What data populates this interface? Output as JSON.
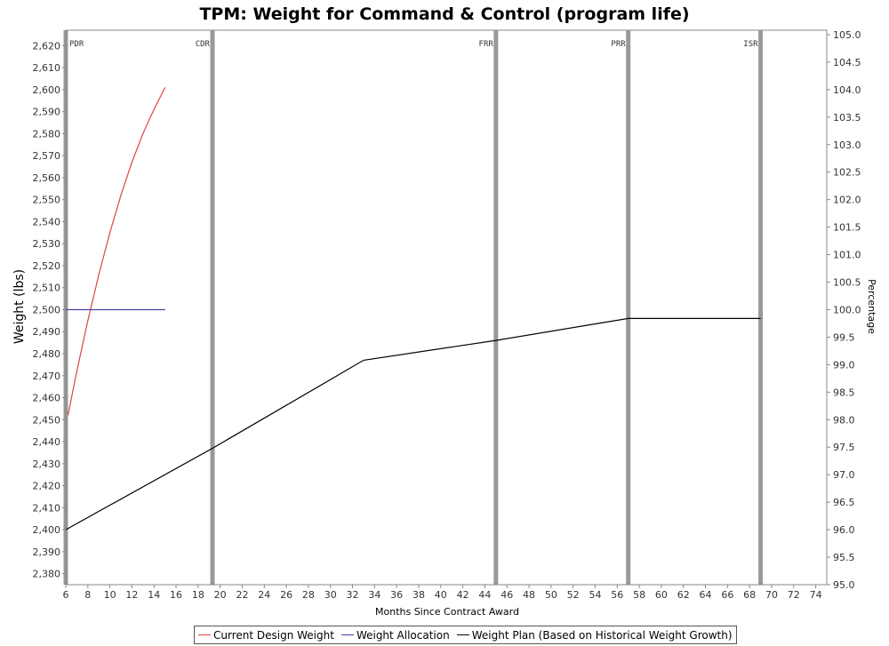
{
  "chart_data": {
    "type": "line",
    "title": "TPM: Weight for Command & Control (program life)",
    "xlabel": "Months Since Contract Award",
    "ylabel": "Weight (lbs)",
    "y2label": "Percentage",
    "xlim": [
      6,
      75
    ],
    "ylim": [
      2375,
      2627
    ],
    "y2lim": [
      95.0,
      105.08
    ],
    "xticks": [
      6,
      8,
      10,
      12,
      14,
      16,
      18,
      20,
      22,
      24,
      26,
      28,
      30,
      32,
      34,
      36,
      38,
      40,
      42,
      44,
      46,
      48,
      50,
      52,
      54,
      56,
      58,
      60,
      62,
      64,
      66,
      68,
      70,
      72,
      74
    ],
    "yticks": [
      2380,
      2390,
      2400,
      2410,
      2420,
      2430,
      2440,
      2450,
      2460,
      2470,
      2480,
      2490,
      2500,
      2510,
      2520,
      2530,
      2540,
      2550,
      2560,
      2570,
      2580,
      2590,
      2600,
      2610,
      2620
    ],
    "y2ticks": [
      95.0,
      95.5,
      96.0,
      96.5,
      97.0,
      97.5,
      98.0,
      98.5,
      99.0,
      99.5,
      100.0,
      100.5,
      101.0,
      101.5,
      102.0,
      102.5,
      103.0,
      103.5,
      104.0,
      104.5,
      105.0
    ],
    "milestones": [
      {
        "label": "PDR",
        "x": 6
      },
      {
        "label": "CDR",
        "x": 19.3
      },
      {
        "label": "FRR",
        "x": 45
      },
      {
        "label": "PRR",
        "x": 57
      },
      {
        "label": "ISR",
        "x": 69
      }
    ],
    "series": [
      {
        "name": "Current Design Weight",
        "color": "#dd4444",
        "x": [
          6.2,
          7,
          8,
          9,
          10,
          11,
          12,
          13,
          14,
          15
        ],
        "y": [
          2452,
          2472,
          2495,
          2516,
          2535,
          2552,
          2567,
          2580,
          2591,
          2601
        ]
      },
      {
        "name": "Weight Allocation",
        "color": "#4444aa",
        "x": [
          6,
          15
        ],
        "y": [
          2500,
          2500
        ]
      },
      {
        "name": "Weight Plan (Based on Historical Weight Growth)",
        "color": "#000000",
        "x": [
          6,
          19.3,
          33,
          45,
          57,
          69
        ],
        "y": [
          2400,
          2437,
          2477,
          2486,
          2496,
          2496
        ]
      }
    ],
    "grid": false,
    "legend_position": "bottom"
  }
}
